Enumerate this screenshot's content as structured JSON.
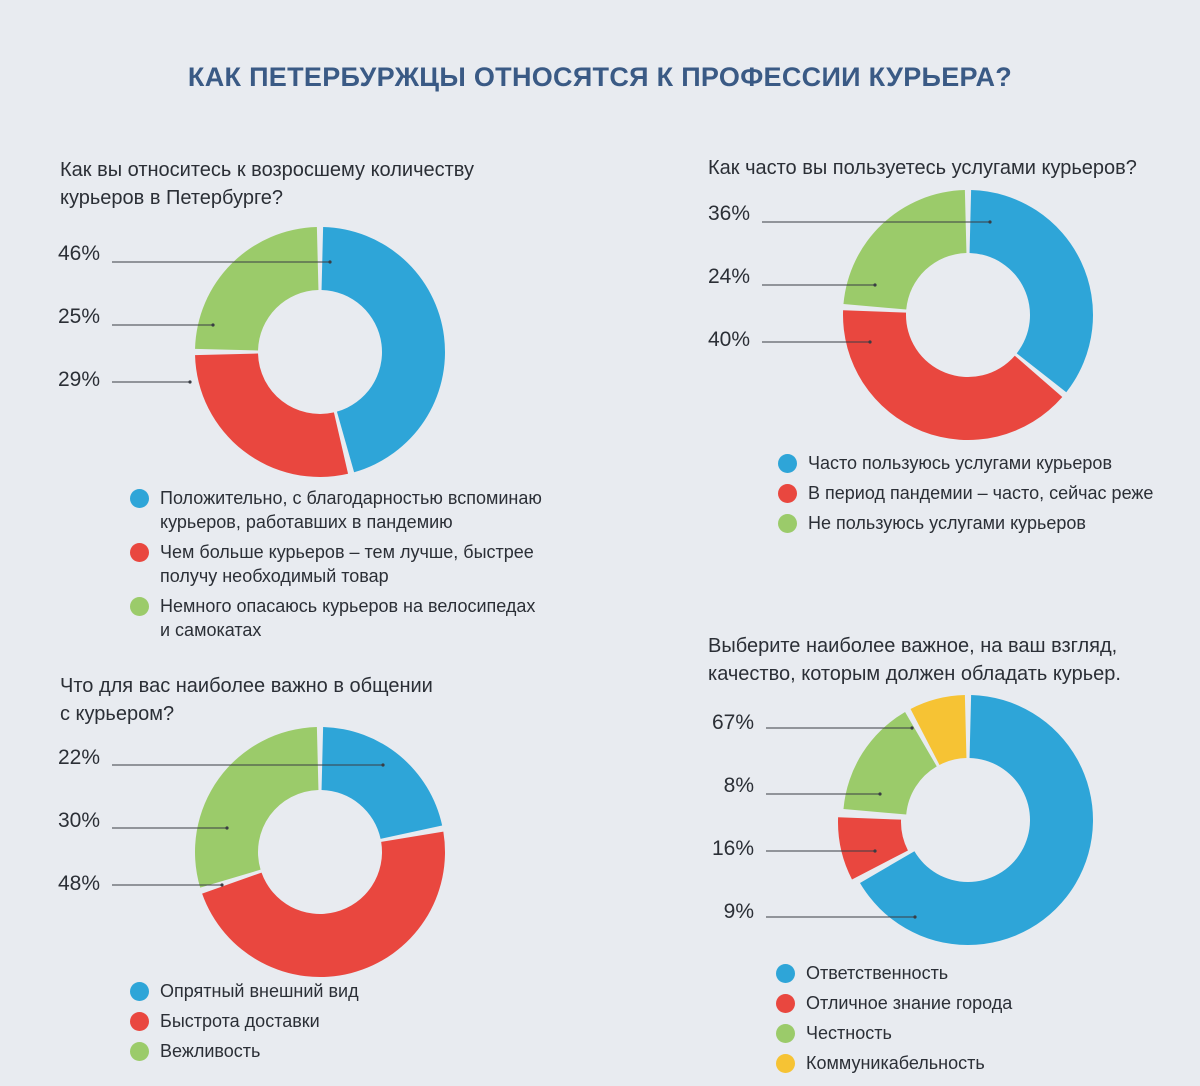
{
  "title": "КАК ПЕТЕРБУРЖЦЫ ОТНОСЯТСЯ К ПРОФЕССИИ КУРЬЕРА?",
  "colors": {
    "blue": "#2ea5d8",
    "red": "#e9473f",
    "green": "#9bcb6a",
    "yellow": "#f6c334"
  },
  "chart_data": [
    {
      "type": "pie",
      "title": "Как вы относитесь к возросшему количеству\nкурьеров в Петербурге?",
      "categories": [
        "Положительно, с благодарностью вспоминаю\nкурьеров, работавших в пандемию",
        "Чем больше курьеров – тем лучше, быстрее\nполучу необходимый товар",
        "Немного опасаюсь курьеров на велосипедах\nи самокатах"
      ],
      "values": [
        46,
        29,
        25
      ],
      "labels": [
        "46%",
        "29%",
        "25%"
      ],
      "colors": [
        "#2ea5d8",
        "#e9473f",
        "#9bcb6a"
      ]
    },
    {
      "type": "pie",
      "title": "Как часто вы пользуетесь услугами курьеров?",
      "categories": [
        "Часто пользуюсь услугами курьеров",
        "В период пандемии – часто, сейчас реже",
        "Не пользуюсь услугами курьеров"
      ],
      "values": [
        36,
        40,
        24
      ],
      "labels": [
        "36%",
        "40%",
        "24%"
      ],
      "colors": [
        "#2ea5d8",
        "#e9473f",
        "#9bcb6a"
      ]
    },
    {
      "type": "pie",
      "title": "Что для вас наиболее важно в общении\nс курьером?",
      "categories": [
        "Опрятный внешний вид",
        "Быстрота доставки",
        "Вежливость"
      ],
      "values": [
        22,
        48,
        30
      ],
      "labels": [
        "22%",
        "48%",
        "30%"
      ],
      "colors": [
        "#2ea5d8",
        "#e9473f",
        "#9bcb6a"
      ]
    },
    {
      "type": "pie",
      "title": "Выберите наиболее важное, на ваш взгляд,\nкачество, которым должен обладать курьер.",
      "categories": [
        "Ответственность",
        "Отличное знание города",
        "Честность",
        "Коммуникабельность"
      ],
      "values": [
        67,
        9,
        16,
        8
      ],
      "labels": [
        "67%",
        "9%",
        "16%",
        "8%"
      ],
      "colors": [
        "#2ea5d8",
        "#e9473f",
        "#9bcb6a",
        "#f6c334"
      ]
    }
  ]
}
